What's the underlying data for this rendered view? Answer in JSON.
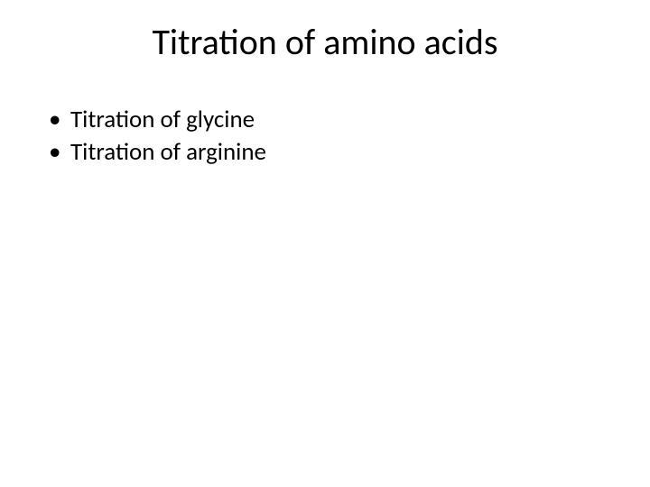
{
  "slide": {
    "title": "Titration of amino acids",
    "title_fontsize": 40,
    "title_color": "#000000",
    "background_color": "#ffffff",
    "bullets": [
      {
        "text": "Titration of glycine"
      },
      {
        "text": "Titration of arginine"
      }
    ],
    "bullet_fontsize": 27,
    "bullet_color": "#000000",
    "font_family": "Calibri"
  }
}
